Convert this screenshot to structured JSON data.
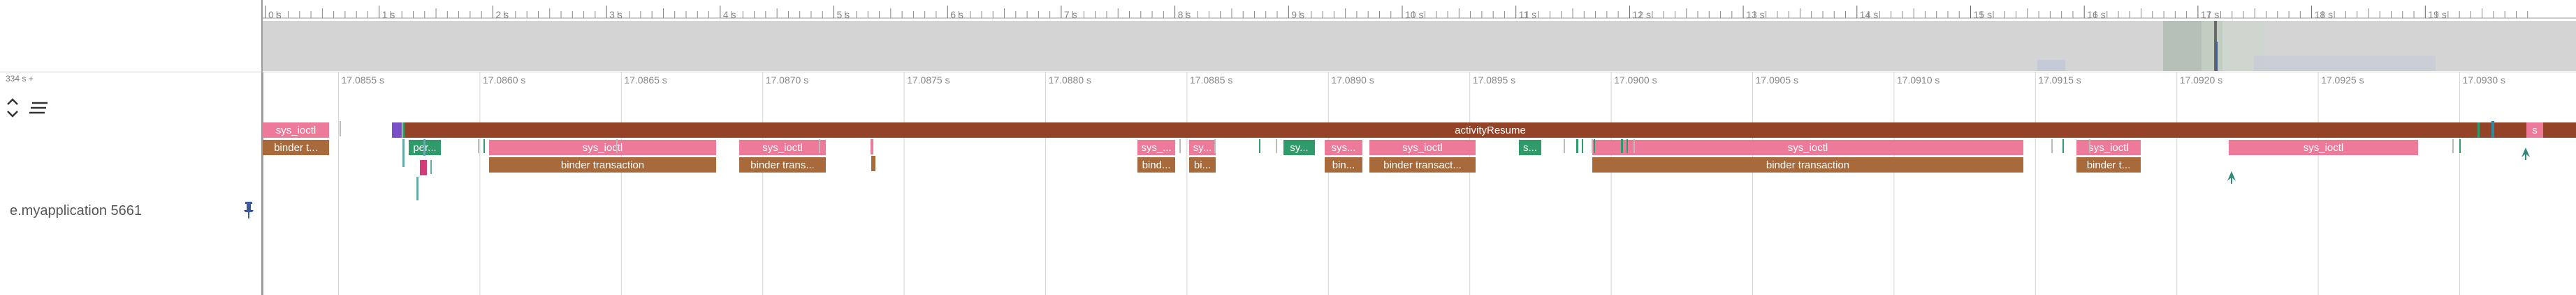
{
  "left_panel": {
    "time_label": "334 s +",
    "process_label": "e.myapplication 5661",
    "icons": [
      "expand-collapse-icon",
      "list-lines-icon",
      "pin-icon"
    ]
  },
  "overview": {
    "ticks": [
      "0 s",
      "1 s",
      "2 s",
      "3 s",
      "4 s",
      "5 s",
      "6 s",
      "7 s",
      "8 s",
      "9 s",
      "10 s",
      "11 s",
      "12 s",
      "13 s",
      "14 s",
      "15 s",
      "16 s",
      "17 s",
      "18 s",
      "19 s"
    ]
  },
  "detail": {
    "ticks": [
      "17.0855 s",
      "17.0860 s",
      "17.0865 s",
      "17.0870 s",
      "17.0875 s",
      "17.0880 s",
      "17.0885 s",
      "17.0890 s",
      "17.0895 s",
      "17.0900 s",
      "17.0905 s",
      "17.0910 s",
      "17.0915 s",
      "17.0920 s",
      "17.0925 s",
      "17.0930 s"
    ],
    "slices": [
      {
        "label": "sys_ioctl",
        "color": "#ec7a98"
      },
      {
        "label": "binder t...",
        "color": "#a86a3a"
      },
      {
        "label": "activityResume",
        "color": "#944326"
      },
      {
        "label": "s",
        "color": "#ec7a98"
      },
      {
        "label": "per...",
        "color": "#2f9a6a"
      },
      {
        "label": "sys_ioctl",
        "color": "#ec7a98"
      },
      {
        "label": "binder transaction",
        "color": "#a86a3a"
      },
      {
        "label": "sys_ioctl",
        "color": "#ec7a98"
      },
      {
        "label": "binder trans...",
        "color": "#a86a3a"
      },
      {
        "label": "sys_...",
        "color": "#ec7a98"
      },
      {
        "label": "bind...",
        "color": "#a86a3a"
      },
      {
        "label": "sy...",
        "color": "#ec7a98"
      },
      {
        "label": "bi...",
        "color": "#a86a3a"
      },
      {
        "label": "sy...",
        "color": "#2f9a6a"
      },
      {
        "label": "sys...",
        "color": "#ec7a98"
      },
      {
        "label": "bin...",
        "color": "#a86a3a"
      },
      {
        "label": "sys_ioctl",
        "color": "#ec7a98"
      },
      {
        "label": "binder transact...",
        "color": "#a86a3a"
      },
      {
        "label": "s...",
        "color": "#2f9a6a"
      },
      {
        "label": "sys_ioctl",
        "color": "#ec7a98"
      },
      {
        "label": "binder transaction",
        "color": "#a86a3a"
      },
      {
        "label": "sys_ioctl",
        "color": "#ec7a98"
      },
      {
        "label": "binder t...",
        "color": "#a86a3a"
      },
      {
        "label": "sys_ioctl",
        "color": "#ec7a98"
      }
    ]
  }
}
